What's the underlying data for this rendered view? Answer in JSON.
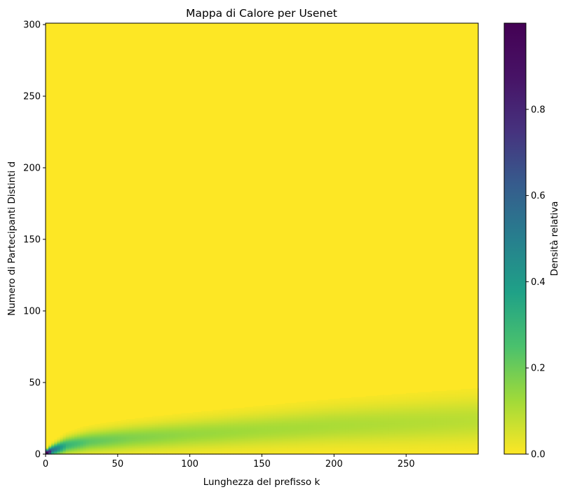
{
  "chart_data": {
    "type": "heatmap",
    "title": "Mappa di Calore per Usenet",
    "xlabel": "Lunghezza del prefisso k",
    "ylabel": "Numero di Partecipanti Distinti d",
    "xlim": [
      0,
      300
    ],
    "ylim": [
      0,
      301
    ],
    "xticks": [
      0,
      50,
      100,
      150,
      200,
      250
    ],
    "yticks": [
      0,
      50,
      100,
      150,
      200,
      250,
      300
    ],
    "colormap": "viridis_r",
    "colorbar": {
      "label": "Densità relativa",
      "range": [
        0,
        1
      ],
      "ticks": [
        0.0,
        0.2,
        0.4,
        0.6,
        0.8
      ],
      "tick_labels": [
        "0.0",
        "0.2",
        "0.4",
        "0.6",
        "0.8"
      ]
    },
    "density_band": {
      "description_points": [
        {
          "k": 1,
          "d_center": 1,
          "d_width": 1.5,
          "peak": 1.0
        },
        {
          "k": 5,
          "d_center": 3,
          "d_width": 2.2,
          "peak": 0.55
        },
        {
          "k": 15,
          "d_center": 6.5,
          "d_width": 3.5,
          "peak": 0.3
        },
        {
          "k": 30,
          "d_center": 9,
          "d_width": 4.5,
          "peak": 0.22
        },
        {
          "k": 60,
          "d_center": 11.5,
          "d_width": 5.5,
          "peak": 0.17
        },
        {
          "k": 100,
          "d_center": 14,
          "d_width": 6.5,
          "peak": 0.14
        },
        {
          "k": 150,
          "d_center": 17,
          "d_width": 7.5,
          "peak": 0.12
        },
        {
          "k": 200,
          "d_center": 20,
          "d_width": 8.5,
          "peak": 0.11
        },
        {
          "k": 250,
          "d_center": 22,
          "d_width": 9.5,
          "peak": 0.1
        },
        {
          "k": 299,
          "d_center": 24,
          "d_width": 10.5,
          "peak": 0.09
        }
      ]
    },
    "grid": false,
    "legend": "none"
  }
}
